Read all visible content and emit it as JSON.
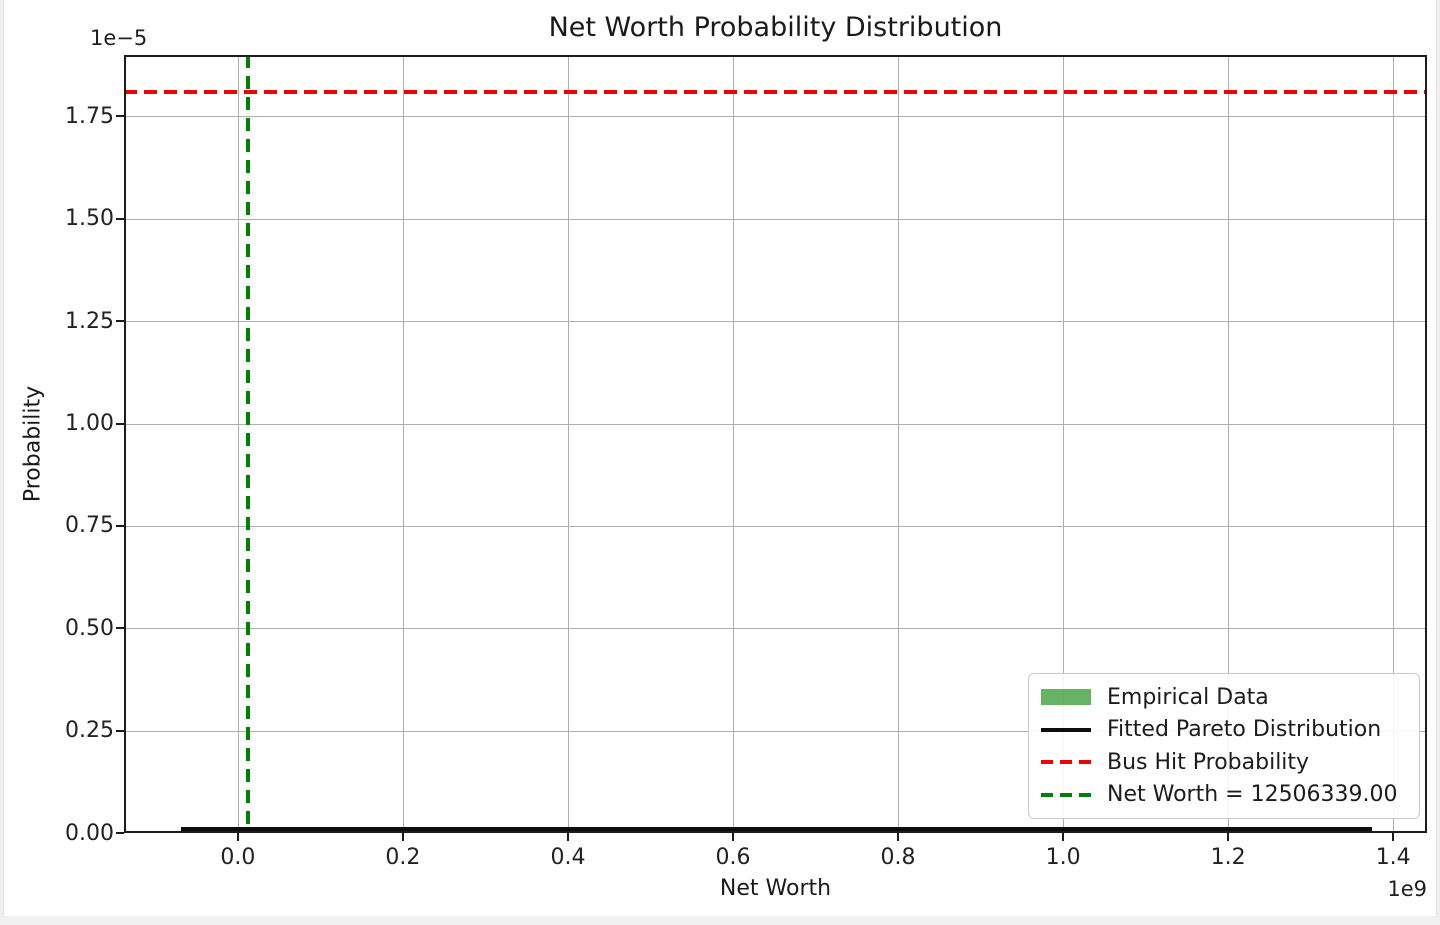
{
  "chart_data": {
    "type": "line",
    "title": "Net Worth Probability Distribution",
    "xlabel": "Net Worth",
    "ylabel": "Probability",
    "x_axis_offset": "1e9",
    "y_axis_offset": "1e−5",
    "xlim": [
      -138000000,
      1441000000
    ],
    "ylim": [
      0,
      1.9e-05
    ],
    "grid": true,
    "x_ticks": {
      "values": [
        0,
        200000000,
        400000000,
        600000000,
        800000000,
        1000000000,
        1200000000,
        1400000000
      ],
      "labels": [
        "0.0",
        "0.2",
        "0.4",
        "0.6",
        "0.8",
        "1.0",
        "1.2",
        "1.4"
      ]
    },
    "y_ticks": {
      "values": [
        0,
        2.5e-06,
        5e-06,
        7.5e-06,
        1e-05,
        1.25e-05,
        1.5e-05,
        1.75e-05
      ],
      "labels": [
        "0.00",
        "0.25",
        "0.50",
        "0.75",
        "1.00",
        "1.25",
        "1.50",
        "1.75"
      ]
    },
    "series": [
      {
        "name": "Empirical Data",
        "kind": "histogram",
        "color": "#008000",
        "alpha": 0.6,
        "visible_height": 0
      },
      {
        "name": "Fitted Pareto Distribution",
        "kind": "line",
        "color": "#0d0d0d",
        "linestyle": "solid",
        "y": 0,
        "x_start": -69000000,
        "x_end": 1374000000
      },
      {
        "name": "Bus Hit Probability",
        "kind": "hline",
        "color": "#f20000",
        "linestyle": "dashed",
        "y": 1.81e-05
      },
      {
        "name": "Net Worth = 12506339.00",
        "kind": "vline",
        "color": "#008000",
        "linestyle": "dashed",
        "x": 12506339
      }
    ],
    "legend": {
      "position": "lower right",
      "entries": [
        {
          "label": "Empirical Data",
          "swatch": "patch",
          "color": "rgba(0,128,0,0.6)"
        },
        {
          "label": "Fitted Pareto Distribution",
          "swatch": "solid-line",
          "color": "#0d0d0d"
        },
        {
          "label": "Bus Hit Probability",
          "swatch": "dashed-line",
          "color": "#f20000"
        },
        {
          "label": "Net Worth = 12506339.00",
          "swatch": "dashed-line",
          "color": "#008000"
        }
      ]
    }
  }
}
